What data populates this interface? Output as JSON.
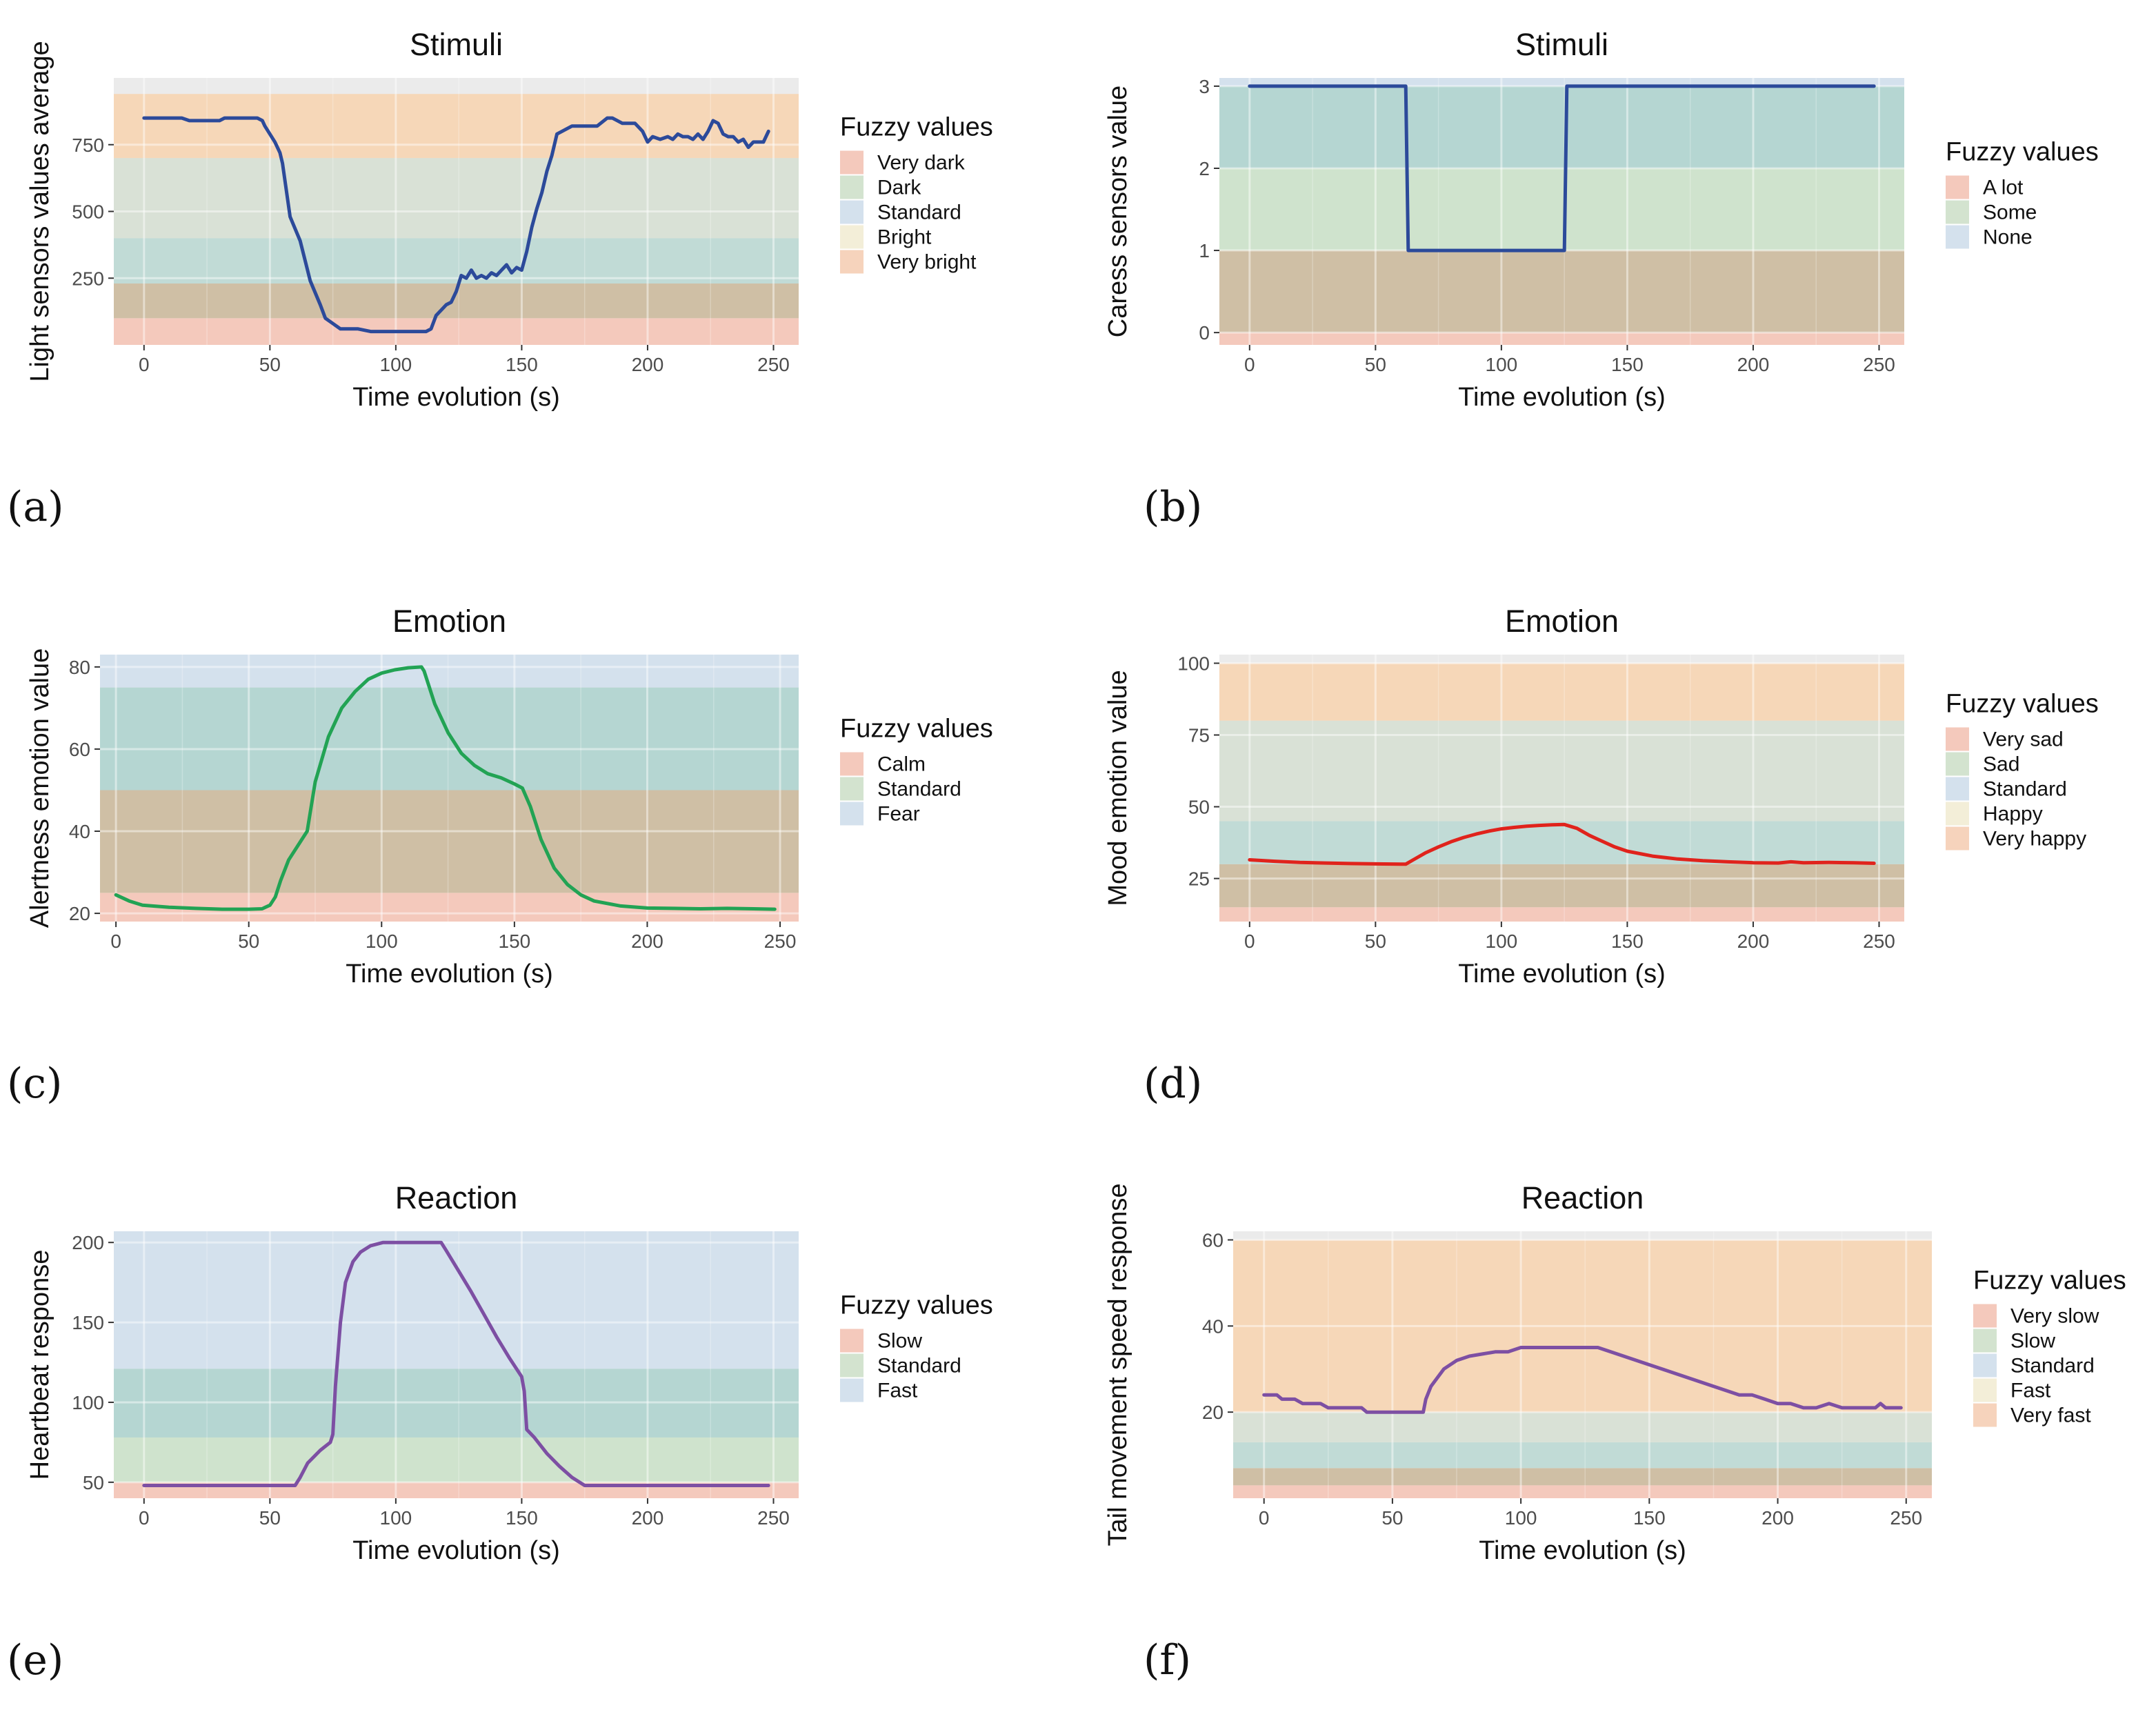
{
  "panel_labels": [
    "(a)",
    "(b)",
    "(c)",
    "(d)",
    "(e)",
    "(f)"
  ],
  "chart_data": [
    {
      "type": "line",
      "title": "Stimuli",
      "xlabel": "Time evolution (s)",
      "ylabel": "Light sensors values average",
      "xlim": [
        -12,
        260
      ],
      "ylim": [
        0,
        1000
      ],
      "xticks": [
        0,
        50,
        100,
        150,
        200,
        250
      ],
      "yticks": [
        250,
        500,
        750
      ],
      "line_color": "#2c4a9a",
      "legend_title": "Fuzzy values",
      "legend": [
        {
          "label": "Very dark",
          "color": "#f4c9bc"
        },
        {
          "label": "Dark",
          "color": "#d3e3cf"
        },
        {
          "label": "Standard",
          "color": "#d4e1ed"
        },
        {
          "label": "Bright",
          "color": "#f3eed8"
        },
        {
          "label": "Very bright",
          "color": "#f6d3bc"
        }
      ],
      "bands": [
        {
          "from": 0,
          "to": 100,
          "color": "#f4c9bc"
        },
        {
          "from": 100,
          "to": 230,
          "color": "#cfbfa5"
        },
        {
          "from": 230,
          "to": 400,
          "color": "#c1dbd6"
        },
        {
          "from": 400,
          "to": 700,
          "color": "#d9e1d6"
        },
        {
          "from": 700,
          "to": 940,
          "color": "#f6d7b8"
        }
      ],
      "x": [
        0,
        15,
        18,
        30,
        32,
        45,
        47,
        48,
        50,
        52,
        54,
        55,
        58,
        62,
        66,
        70,
        72,
        75,
        78,
        80,
        85,
        90,
        95,
        100,
        105,
        110,
        112,
        114,
        116,
        118,
        120,
        122,
        124,
        126,
        128,
        130,
        132,
        134,
        136,
        138,
        140,
        142,
        144,
        146,
        148,
        150,
        152,
        154,
        156,
        158,
        160,
        162,
        164,
        166,
        170,
        175,
        180,
        184,
        186,
        190,
        195,
        198,
        200,
        202,
        205,
        208,
        210,
        212,
        214,
        216,
        218,
        220,
        222,
        224,
        226,
        228,
        230,
        232,
        234,
        236,
        238,
        240,
        242,
        244,
        246,
        248
      ],
      "values": [
        850,
        850,
        840,
        840,
        850,
        850,
        840,
        820,
        790,
        760,
        720,
        680,
        480,
        390,
        240,
        150,
        100,
        80,
        60,
        60,
        60,
        50,
        50,
        50,
        50,
        50,
        50,
        60,
        110,
        130,
        150,
        160,
        200,
        260,
        250,
        280,
        250,
        260,
        250,
        270,
        260,
        280,
        300,
        270,
        290,
        280,
        350,
        440,
        510,
        570,
        650,
        710,
        790,
        800,
        820,
        820,
        820,
        850,
        850,
        830,
        830,
        800,
        760,
        780,
        770,
        780,
        770,
        790,
        780,
        780,
        770,
        790,
        770,
        800,
        840,
        830,
        790,
        780,
        780,
        760,
        770,
        740,
        760,
        760,
        760,
        800
      ]
    },
    {
      "type": "line",
      "title": "Stimuli",
      "xlabel": "Time evolution (s)",
      "ylabel": "Caress sensors value",
      "xlim": [
        -12,
        260
      ],
      "ylim": [
        -0.15,
        3.1
      ],
      "xticks": [
        0,
        50,
        100,
        150,
        200,
        250
      ],
      "yticks": [
        0,
        1,
        2,
        3
      ],
      "line_color": "#2c4a9a",
      "legend_title": "Fuzzy values",
      "legend": [
        {
          "label": "A lot",
          "color": "#f4c9bc"
        },
        {
          "label": "Some",
          "color": "#d3e3cf"
        },
        {
          "label": "None",
          "color": "#d4e1ed"
        }
      ],
      "bands": [
        {
          "from": -0.15,
          "to": 0,
          "color": "#f4c9bc"
        },
        {
          "from": 0,
          "to": 1,
          "color": "#cfbfa5"
        },
        {
          "from": 1,
          "to": 2,
          "color": "#cfe3cd"
        },
        {
          "from": 2,
          "to": 3,
          "color": "#b5d6d2"
        },
        {
          "from": 3,
          "to": 3.1,
          "color": "#d4e1ed"
        }
      ],
      "x": [
        0,
        62,
        63,
        125,
        126,
        248
      ],
      "values": [
        3,
        3,
        1,
        1,
        3,
        3
      ]
    },
    {
      "type": "line",
      "title": "Emotion",
      "xlabel": "Time evolution (s)",
      "ylabel": "Alertness emotion value",
      "xlim": [
        -6,
        257
      ],
      "ylim": [
        18,
        83
      ],
      "xticks": [
        0,
        50,
        100,
        150,
        200,
        250
      ],
      "yticks": [
        20,
        40,
        60,
        80
      ],
      "line_color": "#22a354",
      "legend_title": "Fuzzy values",
      "legend": [
        {
          "label": "Calm",
          "color": "#f4c9bc"
        },
        {
          "label": "Standard",
          "color": "#d3e3cf"
        },
        {
          "label": "Fear",
          "color": "#d4e1ed"
        }
      ],
      "bands": [
        {
          "from": 18,
          "to": 25,
          "color": "#f4c9bc"
        },
        {
          "from": 25,
          "to": 50,
          "color": "#cfbfa5"
        },
        {
          "from": 50,
          "to": 75,
          "color": "#b5d6d2"
        },
        {
          "from": 75,
          "to": 83,
          "color": "#d4e1ed"
        }
      ],
      "x": [
        0,
        5,
        10,
        20,
        30,
        40,
        50,
        55,
        58,
        60,
        62,
        65,
        70,
        72,
        75,
        80,
        85,
        90,
        95,
        100,
        105,
        110,
        115,
        116,
        120,
        125,
        130,
        135,
        140,
        145,
        150,
        153,
        156,
        160,
        165,
        170,
        175,
        180,
        190,
        200,
        210,
        220,
        230,
        240,
        248
      ],
      "values": [
        24.5,
        23,
        22,
        21.5,
        21.2,
        21,
        21,
        21.1,
        22,
        24,
        28,
        33,
        38,
        40,
        52,
        63,
        70,
        74,
        77,
        78.5,
        79.3,
        79.8,
        80,
        79,
        71,
        64,
        59,
        56,
        54,
        53,
        51.5,
        50.5,
        46,
        38,
        31,
        27,
        24.5,
        23,
        21.8,
        21.3,
        21.2,
        21.1,
        21.2,
        21.1,
        21
      ]
    },
    {
      "type": "line",
      "title": "Emotion",
      "xlabel": "Time evolution (s)",
      "ylabel": "Mood emotion value",
      "xlim": [
        -12,
        260
      ],
      "ylim": [
        10,
        103
      ],
      "xticks": [
        0,
        50,
        100,
        150,
        200,
        250
      ],
      "yticks": [
        25,
        50,
        75,
        100
      ],
      "line_color": "#e0231c",
      "legend_title": "Fuzzy values",
      "legend": [
        {
          "label": "Very sad",
          "color": "#f4c9bc"
        },
        {
          "label": "Sad",
          "color": "#d3e3cf"
        },
        {
          "label": "Standard",
          "color": "#d4e1ed"
        },
        {
          "label": "Happy",
          "color": "#f3eed8"
        },
        {
          "label": "Very happy",
          "color": "#f6d3bc"
        }
      ],
      "bands": [
        {
          "from": 10,
          "to": 15,
          "color": "#f4c9bc"
        },
        {
          "from": 15,
          "to": 30,
          "color": "#cfbfa5"
        },
        {
          "from": 30,
          "to": 45,
          "color": "#c1dbd6"
        },
        {
          "from": 45,
          "to": 80,
          "color": "#d9e1d6"
        },
        {
          "from": 80,
          "to": 100,
          "color": "#f6d7b8"
        }
      ],
      "x": [
        0,
        10,
        20,
        30,
        40,
        50,
        60,
        62,
        65,
        70,
        75,
        80,
        85,
        90,
        95,
        100,
        105,
        110,
        115,
        120,
        125,
        130,
        135,
        140,
        145,
        150,
        160,
        170,
        180,
        190,
        200,
        210,
        215,
        220,
        230,
        240,
        248
      ],
      "values": [
        31.5,
        31,
        30.6,
        30.4,
        30.2,
        30.1,
        30,
        30,
        31.5,
        34,
        36,
        37.8,
        39.3,
        40.5,
        41.5,
        42.3,
        42.8,
        43.2,
        43.5,
        43.7,
        43.8,
        42.5,
        40,
        38,
        36,
        34.5,
        32.8,
        31.8,
        31.2,
        30.8,
        30.5,
        30.4,
        30.8,
        30.5,
        30.6,
        30.5,
        30.3
      ]
    },
    {
      "type": "line",
      "title": "Reaction",
      "xlabel": "Time evolution (s)",
      "ylabel": "Heartbeat response",
      "xlim": [
        -12,
        260
      ],
      "ylim": [
        40,
        207
      ],
      "xticks": [
        0,
        50,
        100,
        150,
        200,
        250
      ],
      "yticks": [
        50,
        100,
        150,
        200
      ],
      "line_color": "#7d4fa3",
      "legend_title": "Fuzzy values",
      "legend": [
        {
          "label": "Slow",
          "color": "#f4c9bc"
        },
        {
          "label": "Standard",
          "color": "#d3e3cf"
        },
        {
          "label": "Fast",
          "color": "#d4e1ed"
        }
      ],
      "bands": [
        {
          "from": 40,
          "to": 50,
          "color": "#f4c9bc"
        },
        {
          "from": 50,
          "to": 78,
          "color": "#cfe3cd"
        },
        {
          "from": 78,
          "to": 121,
          "color": "#b5d6d2"
        },
        {
          "from": 121,
          "to": 207,
          "color": "#d4e1ed"
        }
      ],
      "x": [
        0,
        30,
        60,
        62,
        65,
        70,
        74,
        75,
        76,
        78,
        80,
        83,
        86,
        90,
        95,
        100,
        110,
        118,
        120,
        125,
        130,
        135,
        140,
        145,
        150,
        151,
        152,
        155,
        160,
        165,
        170,
        175,
        180,
        200,
        220,
        248
      ],
      "values": [
        48,
        48,
        48,
        53,
        62,
        70,
        75,
        80,
        110,
        150,
        175,
        188,
        194,
        198,
        200,
        200,
        200,
        200,
        195,
        182,
        169,
        155,
        141,
        128,
        116,
        107,
        83,
        78,
        68,
        60,
        53,
        48,
        48,
        48,
        48,
        48
      ]
    },
    {
      "type": "line",
      "title": "Reaction",
      "xlabel": "Time evolution (s)",
      "ylabel": "Tail movement speed response",
      "xlim": [
        -12,
        260
      ],
      "ylim": [
        0,
        62
      ],
      "xticks": [
        0,
        50,
        100,
        150,
        200,
        250
      ],
      "yticks": [
        20,
        40,
        60
      ],
      "line_color": "#7d4fa3",
      "legend_title": "Fuzzy values",
      "legend": [
        {
          "label": "Very slow",
          "color": "#f4c9bc"
        },
        {
          "label": "Slow",
          "color": "#d3e3cf"
        },
        {
          "label": "Standard",
          "color": "#d4e1ed"
        },
        {
          "label": "Fast",
          "color": "#f3eed8"
        },
        {
          "label": "Very fast",
          "color": "#f6d3bc"
        }
      ],
      "bands": [
        {
          "from": 0,
          "to": 3,
          "color": "#f4c9bc"
        },
        {
          "from": 3,
          "to": 7,
          "color": "#cfbfa5"
        },
        {
          "from": 7,
          "to": 13,
          "color": "#c1dbd6"
        },
        {
          "from": 13,
          "to": 20,
          "color": "#d9e1d6"
        },
        {
          "from": 20,
          "to": 60,
          "color": "#f6d7b8"
        }
      ],
      "x": [
        0,
        5,
        7,
        12,
        15,
        22,
        25,
        38,
        40,
        60,
        62,
        63,
        65,
        70,
        75,
        80,
        85,
        90,
        95,
        100,
        105,
        110,
        115,
        120,
        125,
        130,
        135,
        140,
        145,
        150,
        155,
        160,
        165,
        170,
        175,
        180,
        185,
        190,
        195,
        200,
        205,
        210,
        215,
        220,
        225,
        230,
        235,
        238,
        240,
        242,
        248
      ],
      "values": [
        24,
        24,
        23,
        23,
        22,
        22,
        21,
        21,
        20,
        20,
        20,
        23,
        26,
        30,
        32,
        33,
        33.5,
        34,
        34,
        35,
        35,
        35,
        35,
        35,
        35,
        35,
        34,
        33,
        32,
        31,
        30,
        29,
        28,
        27,
        26,
        25,
        24,
        24,
        23,
        22,
        22,
        21,
        21,
        22,
        21,
        21,
        21,
        21,
        22,
        21,
        21
      ]
    }
  ]
}
